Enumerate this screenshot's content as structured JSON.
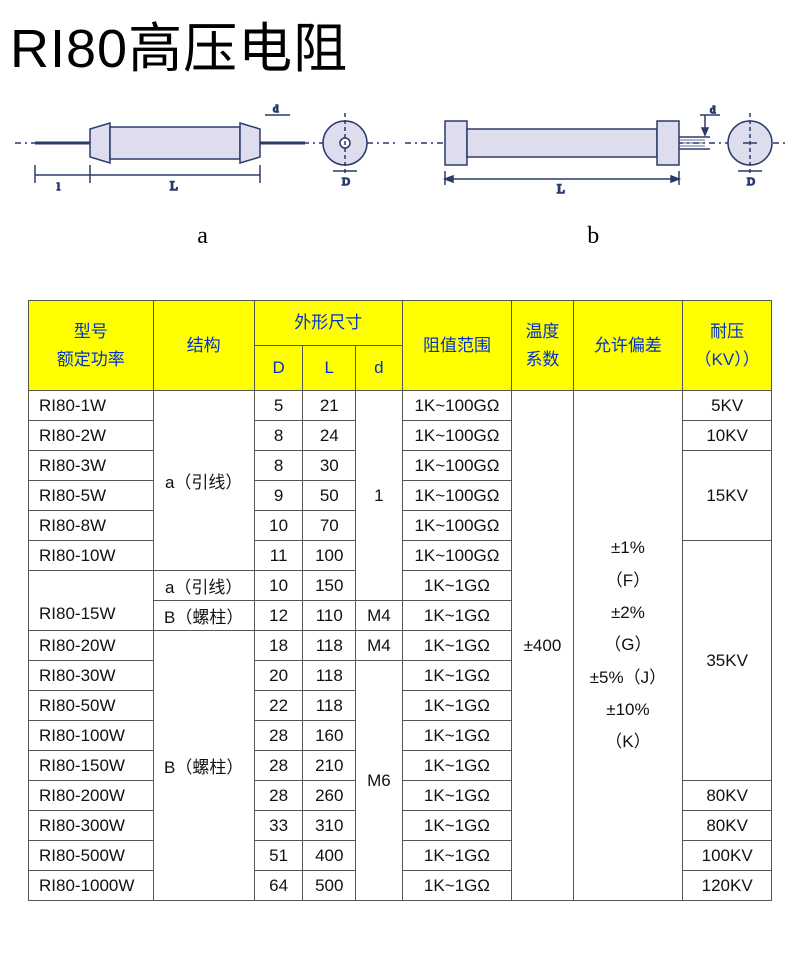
{
  "title": "RI80高压电阻",
  "diagram_labels": {
    "a": "a",
    "b": "b"
  },
  "headers": {
    "model": "型号\n额定功率",
    "struct": "结构",
    "dims": "外形尺寸",
    "D": "D",
    "L": "L",
    "d": "d",
    "range": "阻值范围",
    "temp": "温度\n系数",
    "tol": "允许偏差",
    "volt": "耐压\n（KV））"
  },
  "struct_labels": {
    "a_lead": "a（引线）",
    "b_stud": "B（螺柱）"
  },
  "d_values": {
    "one": "1",
    "m4": "M4",
    "m6": "M6"
  },
  "temp_value": "±400",
  "tol_value": "±1%\n（F）\n±2%\n（G）\n±5%（J）\n±10%\n（K）",
  "volt": {
    "v5": "5KV",
    "v10": "10KV",
    "v15": "15KV",
    "v35": "35KV",
    "v80": "80KV",
    "v100": "100KV",
    "v120": "120KV"
  },
  "rows": {
    "r1": {
      "model": "RI80-1W",
      "D": "5",
      "L": "21",
      "range": "1K~100GΩ"
    },
    "r2": {
      "model": "RI80-2W",
      "D": "8",
      "L": "24",
      "range": "1K~100GΩ"
    },
    "r3": {
      "model": "RI80-3W",
      "D": "8",
      "L": "30",
      "range": "1K~100GΩ"
    },
    "r4": {
      "model": "RI80-5W",
      "D": "9",
      "L": "50",
      "range": "1K~100GΩ"
    },
    "r5": {
      "model": "RI80-8W",
      "D": "10",
      "L": "70",
      "range": "1K~100GΩ"
    },
    "r6": {
      "model": "RI80-10W",
      "D": "11",
      "L": "100",
      "range": "1K~100GΩ"
    },
    "r7a": {
      "D": "10",
      "L": "150",
      "range": "1K~1GΩ"
    },
    "r7b": {
      "model": "RI80-15W",
      "D": "12",
      "L": "110",
      "range": "1K~1GΩ"
    },
    "r8": {
      "model": "RI80-20W",
      "D": "18",
      "L": "118",
      "range": "1K~1GΩ"
    },
    "r9": {
      "model": "RI80-30W",
      "D": "20",
      "L": "118",
      "range": "1K~1GΩ"
    },
    "r10": {
      "model": "RI80-50W",
      "D": "22",
      "L": "118",
      "range": "1K~1GΩ"
    },
    "r11": {
      "model": "RI80-100W",
      "D": "28",
      "L": "160",
      "range": "1K~1GΩ"
    },
    "r12": {
      "model": "RI80-150W",
      "D": "28",
      "L": "210",
      "range": "1K~1GΩ"
    },
    "r13": {
      "model": "RI80-200W",
      "D": "28",
      "L": "260",
      "range": "1K~1GΩ"
    },
    "r14": {
      "model": "RI80-300W",
      "D": "33",
      "L": "310",
      "range": "1K~1GΩ"
    },
    "r15": {
      "model": "RI80-500W",
      "D": "51",
      "L": "400",
      "range": "1K~1GΩ"
    },
    "r16": {
      "model": "RI80-1000W",
      "D": "64",
      "L": "500",
      "range": "1K~1GΩ"
    }
  },
  "diagram_style": {
    "stroke": "#2a3a6a",
    "lead_stroke": "#2a3a6a",
    "dash": "4 3",
    "font": "Times New Roman"
  }
}
